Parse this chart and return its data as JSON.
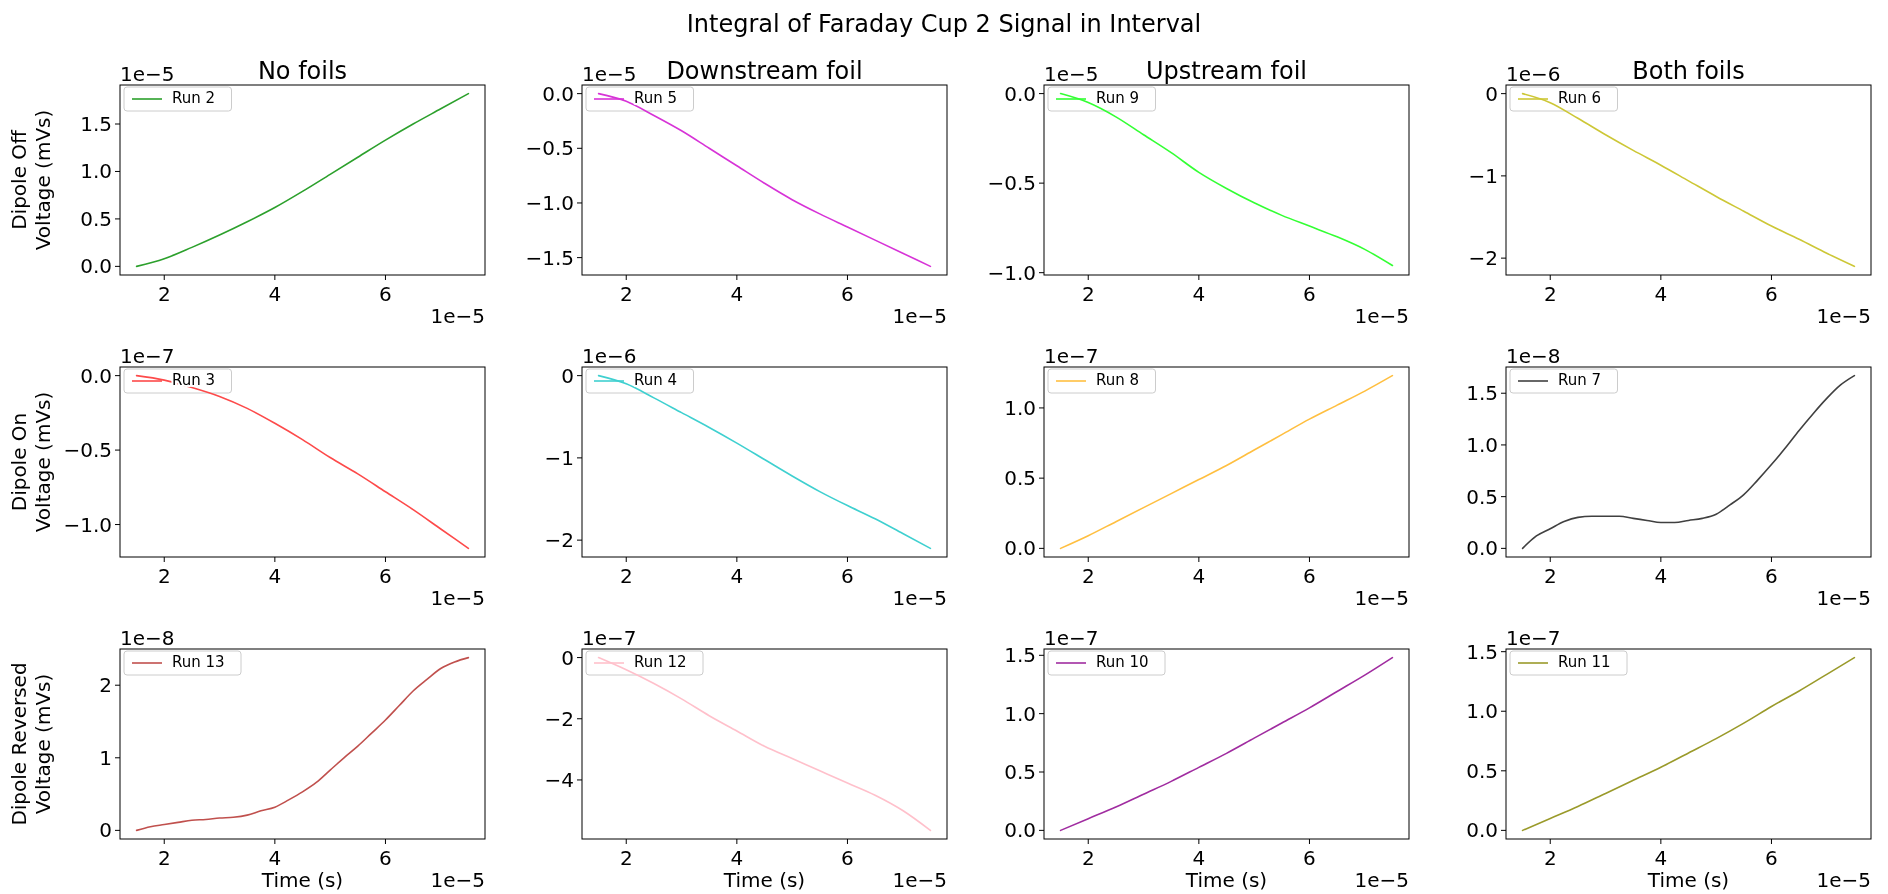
{
  "chart_data": [
    {
      "type": "other",
      "title": "Integral of Faraday Cup 2 Signal in Interval"
    },
    {
      "type": "line",
      "title": "No foils",
      "ylabel": "Dipole Off\nVoltage (mVs)",
      "annotations": [
        "1e−5",
        "1e−5"
      ],
      "legend": "top left",
      "x": [
        1.5,
        2,
        2.5,
        3,
        3.5,
        4,
        4.5,
        5,
        5.5,
        6,
        6.5,
        7,
        7.5
      ],
      "xlim": [
        1.2,
        7.8
      ],
      "xticks": [
        2,
        4,
        6
      ],
      "ylim": [
        -0.091,
        1.911
      ],
      "yticks": [
        {
          "value": 0,
          "label": "0.0"
        },
        0.5,
        {
          "value": 1,
          "label": "1.0"
        },
        1.5
      ],
      "series": [
        {
          "name": "Run 2",
          "color": "#2ca02c",
          "values": [
            0,
            0.08,
            0.2,
            0.33,
            0.47,
            0.62,
            0.79,
            0.97,
            1.15,
            1.33,
            1.5,
            1.66,
            1.82
          ]
        }
      ]
    },
    {
      "type": "line",
      "title": "Downstream foil",
      "annotations": [
        "1e−5",
        "1e−5"
      ],
      "legend": "top left",
      "x": [
        1.5,
        2,
        2.5,
        3,
        3.5,
        4,
        4.5,
        5,
        5.5,
        6,
        6.5,
        7,
        7.5
      ],
      "xlim": [
        1.2,
        7.8
      ],
      "xticks": [
        2,
        4,
        6
      ],
      "ylim": [
        -1.659,
        0.079
      ],
      "yticks": [
        {
          "value": 0,
          "label": "0.0"
        },
        {
          "value": -0.5,
          "label": "−0.5"
        },
        {
          "value": -1,
          "label": "−1.0"
        },
        {
          "value": -1.5,
          "label": "−1.5"
        }
      ],
      "series": [
        {
          "name": "Run 5",
          "color": "#d733d7",
          "values": [
            0,
            -0.07,
            -0.2,
            -0.34,
            -0.5,
            -0.66,
            -0.82,
            -0.97,
            -1.1,
            -1.22,
            -1.34,
            -1.46,
            -1.58
          ]
        }
      ]
    },
    {
      "type": "line",
      "title": "Upstream foil",
      "annotations": [
        "1e−5",
        "1e−5"
      ],
      "legend": "top left",
      "x": [
        1.5,
        2,
        2.5,
        3,
        3.5,
        4,
        4.5,
        5,
        5.5,
        6,
        6.5,
        7,
        7.5
      ],
      "xlim": [
        1.2,
        7.8
      ],
      "xticks": [
        2,
        4,
        6
      ],
      "ylim": [
        -1.013,
        0.048
      ],
      "yticks": [
        {
          "value": 0,
          "label": "0.0"
        },
        {
          "value": -0.5,
          "label": "−0.5"
        },
        {
          "value": -1,
          "label": "−1.0"
        }
      ],
      "series": [
        {
          "name": "Run 9",
          "color": "#33ff33",
          "values": [
            0,
            -0.05,
            -0.13,
            -0.23,
            -0.33,
            -0.44,
            -0.53,
            -0.61,
            -0.68,
            -0.74,
            -0.8,
            -0.87,
            -0.96
          ]
        }
      ]
    },
    {
      "type": "line",
      "title": "Both foils",
      "annotations": [
        "1e−6",
        "1e−5"
      ],
      "legend": "top left",
      "x": [
        1.5,
        2,
        2.5,
        3,
        3.5,
        4,
        4.5,
        5,
        5.5,
        6,
        6.5,
        7,
        7.5
      ],
      "xlim": [
        1.2,
        7.8
      ],
      "xticks": [
        2,
        4,
        6
      ],
      "ylim": [
        -2.205,
        0.105
      ],
      "yticks": [
        0,
        {
          "value": -1,
          "label": "−1"
        },
        {
          "value": -2,
          "label": "−2"
        }
      ],
      "series": [
        {
          "name": "Run 6",
          "color": "#cdc736",
          "values": [
            0,
            -0.11,
            -0.3,
            -0.5,
            -0.69,
            -0.87,
            -1.06,
            -1.25,
            -1.43,
            -1.61,
            -1.77,
            -1.94,
            -2.1
          ]
        }
      ]
    },
    {
      "type": "line",
      "ylabel": "Dipole On\nVoltage (mVs)",
      "annotations": [
        "1e−7",
        "1e−5"
      ],
      "legend": "top left",
      "x": [
        1.5,
        2,
        2.5,
        3,
        3.5,
        4,
        4.5,
        5,
        5.5,
        6,
        6.5,
        7,
        7.5
      ],
      "xlim": [
        1.2,
        7.8
      ],
      "xticks": [
        2,
        4,
        6
      ],
      "ylim": [
        -1.218,
        0.058
      ],
      "yticks": [
        {
          "value": 0,
          "label": "0.0"
        },
        {
          "value": -0.5,
          "label": "−0.5"
        },
        {
          "value": -1,
          "label": "−1.0"
        }
      ],
      "series": [
        {
          "name": "Run 3",
          "color": "#fd4a4a",
          "values": [
            0,
            -0.03,
            -0.08,
            -0.14,
            -0.22,
            -0.32,
            -0.43,
            -0.55,
            -0.66,
            -0.78,
            -0.9,
            -1.03,
            -1.16
          ]
        }
      ]
    },
    {
      "type": "line",
      "annotations": [
        "1e−6",
        "1e−5"
      ],
      "legend": "top left",
      "x": [
        1.5,
        2,
        2.5,
        3,
        3.5,
        4,
        4.5,
        5,
        5.5,
        6,
        6.5,
        7,
        7.5
      ],
      "xlim": [
        1.2,
        7.8
      ],
      "xticks": [
        2,
        4,
        6
      ],
      "ylim": [
        -2.205,
        0.105
      ],
      "yticks": [
        0,
        {
          "value": -1,
          "label": "−1"
        },
        {
          "value": -2,
          "label": "−2"
        }
      ],
      "series": [
        {
          "name": "Run 4",
          "color": "#3fd0d0",
          "values": [
            0,
            -0.1,
            -0.27,
            -0.45,
            -0.63,
            -0.82,
            -1.02,
            -1.22,
            -1.41,
            -1.58,
            -1.74,
            -1.92,
            -2.1
          ]
        }
      ]
    },
    {
      "type": "line",
      "annotations": [
        "1e−7",
        "1e−5"
      ],
      "legend": "top left",
      "x": [
        1.5,
        2,
        2.5,
        3,
        3.5,
        4,
        4.5,
        5,
        5.5,
        6,
        6.5,
        7,
        7.5
      ],
      "xlim": [
        1.2,
        7.8
      ],
      "xticks": [
        2,
        4,
        6
      ],
      "ylim": [
        -0.0615,
        1.2915
      ],
      "yticks": [
        {
          "value": 0,
          "label": "0.0"
        },
        0.5,
        {
          "value": 1,
          "label": "1.0"
        }
      ],
      "series": [
        {
          "name": "Run 8",
          "color": "#ffbf40",
          "values": [
            0,
            0.09,
            0.19,
            0.29,
            0.39,
            0.49,
            0.59,
            0.7,
            0.81,
            0.92,
            1.02,
            1.12,
            1.23
          ]
        }
      ]
    },
    {
      "type": "line",
      "annotations": [
        "1e−8",
        "1e−5"
      ],
      "legend": "top left",
      "x": [
        1.5,
        1.75,
        2,
        2.25,
        2.5,
        2.75,
        3,
        3.25,
        3.5,
        3.75,
        4,
        4.25,
        4.5,
        4.75,
        5,
        5.25,
        5.5,
        5.75,
        6,
        6.25,
        6.5,
        6.75,
        7,
        7.25,
        7.5
      ],
      "xlim": [
        1.2,
        7.8
      ],
      "xticks": [
        2,
        4,
        6
      ],
      "ylim": [
        -0.0835,
        1.7535
      ],
      "yticks": [
        {
          "value": 0,
          "label": "0.0"
        },
        0.5,
        {
          "value": 1,
          "label": "1.0"
        },
        1.5
      ],
      "series": [
        {
          "name": "Run 7",
          "color": "#404040",
          "values": [
            0,
            0.12,
            0.19,
            0.26,
            0.3,
            0.31,
            0.31,
            0.31,
            0.29,
            0.27,
            0.25,
            0.25,
            0.27,
            0.29,
            0.33,
            0.42,
            0.52,
            0.66,
            0.81,
            0.97,
            1.14,
            1.3,
            1.45,
            1.58,
            1.67
          ]
        }
      ]
    },
    {
      "type": "line",
      "xlabel": "Time (s)",
      "ylabel": "Dipole Reversed\nVoltage (mVs)",
      "annotations": [
        "1e−8",
        "1e−5"
      ],
      "legend": "top left",
      "x": [
        1.5,
        1.75,
        2,
        2.25,
        2.5,
        2.75,
        3,
        3.25,
        3.5,
        3.75,
        4,
        4.25,
        4.5,
        4.75,
        5,
        5.25,
        5.5,
        5.75,
        6,
        6.25,
        6.5,
        6.75,
        7,
        7.25,
        7.5
      ],
      "xlim": [
        1.2,
        7.8
      ],
      "xticks": [
        2,
        4,
        6
      ],
      "ylim": [
        -0.119,
        2.499
      ],
      "yticks": [
        0,
        1,
        2
      ],
      "series": [
        {
          "name": "Run 13",
          "color": "#c0504d",
          "values": [
            0,
            0.05,
            0.08,
            0.11,
            0.14,
            0.15,
            0.17,
            0.18,
            0.21,
            0.27,
            0.32,
            0.42,
            0.53,
            0.66,
            0.83,
            1,
            1.16,
            1.34,
            1.52,
            1.72,
            1.92,
            2.08,
            2.23,
            2.32,
            2.38
          ]
        }
      ]
    },
    {
      "type": "line",
      "xlabel": "Time (s)",
      "annotations": [
        "1e−7",
        "1e−5"
      ],
      "legend": "top left",
      "x": [
        1.5,
        2,
        2.5,
        3,
        3.5,
        4,
        4.5,
        5,
        5.5,
        6,
        6.5,
        7,
        7.5
      ],
      "xlim": [
        1.2,
        7.8
      ],
      "xticks": [
        2,
        4,
        6
      ],
      "ylim": [
        -5.93,
        0.28
      ],
      "yticks": [
        0,
        {
          "value": -2,
          "label": "−2"
        },
        {
          "value": -4,
          "label": "−4"
        }
      ],
      "series": [
        {
          "name": "Run 12",
          "color": "#ffc0cb",
          "values": [
            0,
            -0.4,
            -0.85,
            -1.35,
            -1.9,
            -2.4,
            -2.9,
            -3.3,
            -3.7,
            -4.1,
            -4.5,
            -5,
            -5.65
          ]
        }
      ]
    },
    {
      "type": "line",
      "xlabel": "Time (s)",
      "annotations": [
        "1e−7",
        "1e−5"
      ],
      "legend": "top left",
      "x": [
        1.5,
        2,
        2.5,
        3,
        3.5,
        4,
        4.5,
        5,
        5.5,
        6,
        6.5,
        7,
        7.5
      ],
      "xlim": [
        1.2,
        7.8
      ],
      "xticks": [
        2,
        4,
        6
      ],
      "ylim": [
        -0.074,
        1.554
      ],
      "yticks": [
        {
          "value": 0,
          "label": "0.0"
        },
        0.5,
        {
          "value": 1,
          "label": "1.0"
        },
        1.5
      ],
      "series": [
        {
          "name": "Run 10",
          "color": "#a02ca0",
          "values": [
            0,
            0.1,
            0.2,
            0.31,
            0.42,
            0.54,
            0.66,
            0.79,
            0.92,
            1.05,
            1.19,
            1.33,
            1.48
          ]
        }
      ]
    },
    {
      "type": "line",
      "xlabel": "Time (s)",
      "annotations": [
        "1e−7",
        "1e−5"
      ],
      "legend": "top left",
      "x": [
        1.5,
        2,
        2.5,
        3,
        3.5,
        4,
        4.5,
        5,
        5.5,
        6,
        6.5,
        7,
        7.5
      ],
      "xlim": [
        1.2,
        7.8
      ],
      "xticks": [
        2,
        4,
        6
      ],
      "ylim": [
        -0.0725,
        1.5225
      ],
      "yticks": [
        {
          "value": 0,
          "label": "0.0"
        },
        0.5,
        {
          "value": 1,
          "label": "1.0"
        },
        1.5
      ],
      "series": [
        {
          "name": "Run 11",
          "color": "#9a9a2a",
          "values": [
            0,
            0.1,
            0.2,
            0.31,
            0.42,
            0.53,
            0.65,
            0.77,
            0.9,
            1.04,
            1.17,
            1.31,
            1.45
          ]
        }
      ]
    }
  ]
}
